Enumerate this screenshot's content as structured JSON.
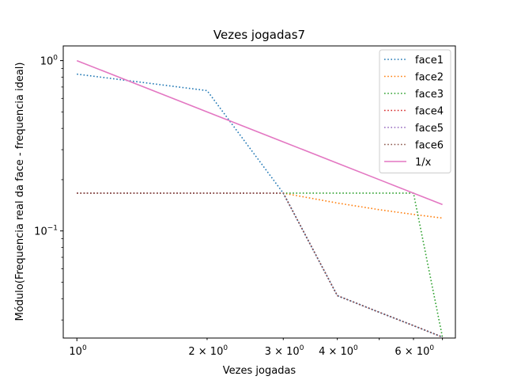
{
  "chart_data": {
    "type": "line",
    "title": "Vezes jogadas7",
    "xlabel": "Vezes jogadas",
    "ylabel": "Módulo(Frequencia real da face - frequencia ideal)",
    "xscale": "log",
    "yscale": "log",
    "xlim": [
      0.93,
      7.5
    ],
    "ylim": [
      0.0235,
      1.22
    ],
    "legend_position": "top-right",
    "grid": false,
    "x_ticks": [
      {
        "value": 1,
        "base": "10",
        "exp": "0"
      },
      {
        "value": 2,
        "base": "2 × 10",
        "exp": "0"
      },
      {
        "value": 3,
        "base": "3 × 10",
        "exp": "0"
      },
      {
        "value": 4,
        "base": "4 × 10",
        "exp": "0"
      },
      {
        "value": 6,
        "base": "6 × 10",
        "exp": "0"
      }
    ],
    "y_ticks": [
      {
        "value": 1,
        "base": "10",
        "exp": "0"
      },
      {
        "value": 0.1,
        "base": "10",
        "exp": "−1"
      }
    ],
    "x": [
      1,
      2,
      3,
      4,
      5,
      6,
      7
    ],
    "series": [
      {
        "name": "face1",
        "color": "#1f77b4",
        "style": "dotted",
        "values": [
          0.8333,
          0.6667,
          0.1667,
          0.0417,
          0.0333,
          0.0278,
          0.0238
        ]
      },
      {
        "name": "face2",
        "color": "#ff7f0e",
        "style": "dotted",
        "values": [
          0.1667,
          0.1667,
          0.1667,
          0.1458,
          0.1333,
          0.125,
          0.119
        ]
      },
      {
        "name": "face3",
        "color": "#2ca02c",
        "style": "dotted",
        "values": [
          0.1667,
          0.1667,
          0.1667,
          0.1667,
          0.1667,
          0.1667,
          0.0238
        ]
      },
      {
        "name": "face4",
        "color": "#d62728",
        "style": "dotted",
        "values": [
          0.1667,
          0.1667,
          0.1667,
          0.0417,
          0.0333,
          0.0278,
          0.0238
        ]
      },
      {
        "name": "face5",
        "color": "#9467bd",
        "style": "dotted",
        "values": [
          0.1667,
          0.1667,
          0.1667,
          0.0417,
          0.0333,
          0.0278,
          0.0238
        ]
      },
      {
        "name": "face6",
        "color": "#8c564b",
        "style": "dotted",
        "values": [
          0.1667,
          0.1667,
          0.1667,
          0.0417,
          0.0333,
          0.0278,
          0.0238
        ]
      },
      {
        "name": "1/x",
        "color": "#e377c2",
        "style": "solid",
        "values": [
          1.0,
          0.5,
          0.3333,
          0.25,
          0.2,
          0.1667,
          0.1429
        ]
      }
    ]
  }
}
